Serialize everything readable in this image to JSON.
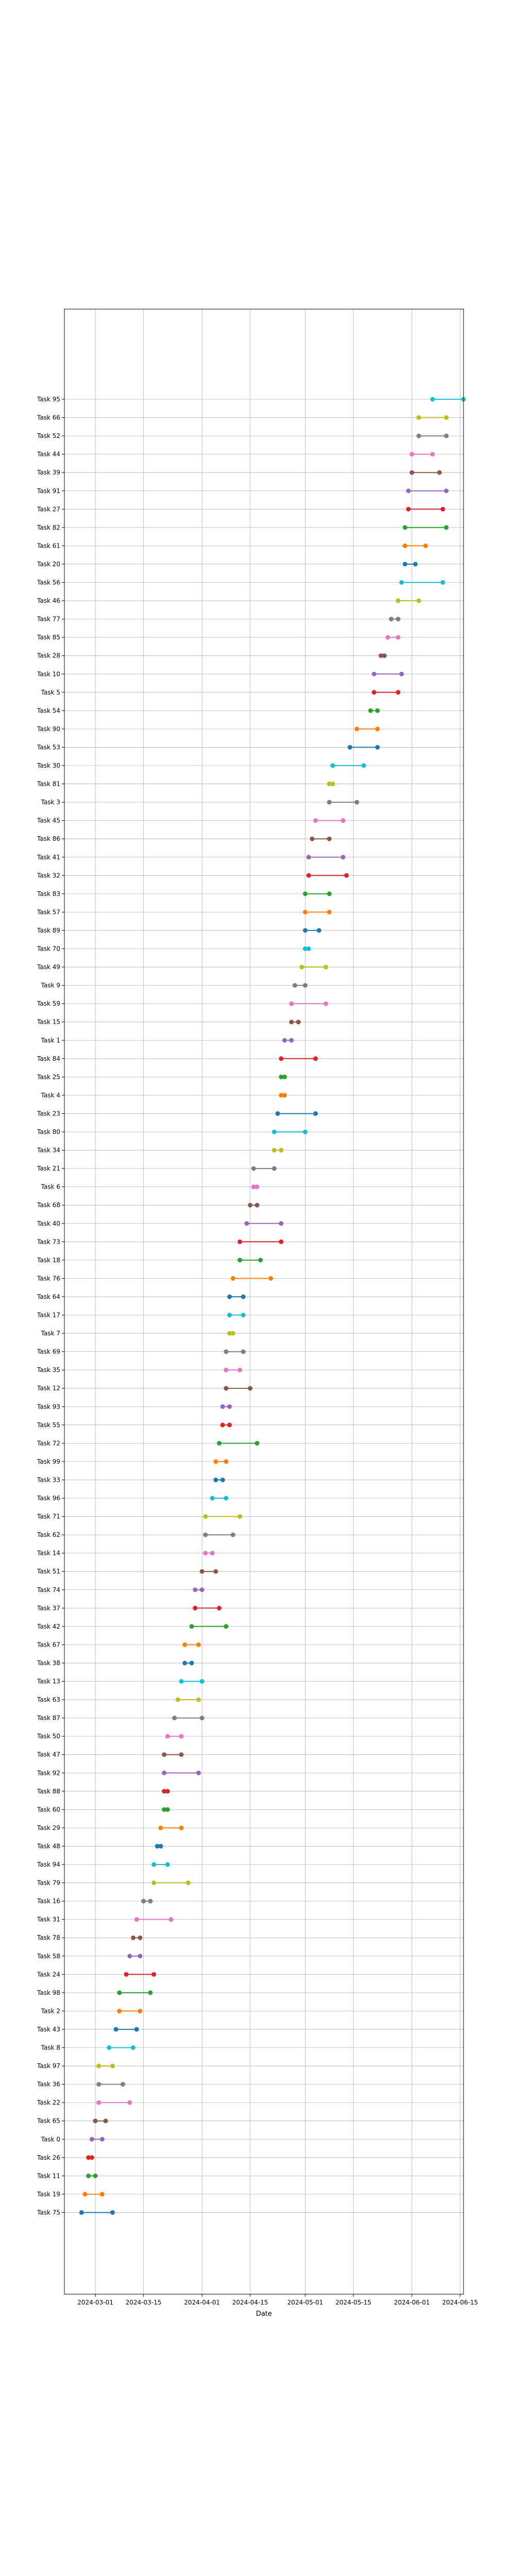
{
  "chart_data": {
    "type": "dumbbell",
    "title": "",
    "xlabel": "Date",
    "ylabel": "",
    "grid": true,
    "xlim": [
      "2024-02-21",
      "2024-06-16"
    ],
    "x_ticks": [
      "2024-03-01",
      "2024-03-15",
      "2024-04-01",
      "2024-04-15",
      "2024-05-01",
      "2024-05-15",
      "2024-06-01",
      "2024-06-15"
    ],
    "tasks": [
      {
        "name": "Task 75",
        "start": "2024-02-26",
        "end": "2024-03-06",
        "color": "#1f77b4"
      },
      {
        "name": "Task 19",
        "start": "2024-02-27",
        "end": "2024-03-03",
        "color": "#ff7f0e"
      },
      {
        "name": "Task 11",
        "start": "2024-02-28",
        "end": "2024-03-01",
        "color": "#2ca02c"
      },
      {
        "name": "Task 26",
        "start": "2024-02-28",
        "end": "2024-02-29",
        "color": "#d62728"
      },
      {
        "name": "Task 0",
        "start": "2024-02-29",
        "end": "2024-03-03",
        "color": "#9467bd"
      },
      {
        "name": "Task 65",
        "start": "2024-03-01",
        "end": "2024-03-04",
        "color": "#8c564b"
      },
      {
        "name": "Task 22",
        "start": "2024-03-02",
        "end": "2024-03-11",
        "color": "#e377c2"
      },
      {
        "name": "Task 36",
        "start": "2024-03-02",
        "end": "2024-03-09",
        "color": "#7f7f7f"
      },
      {
        "name": "Task 97",
        "start": "2024-03-02",
        "end": "2024-03-06",
        "color": "#bcbd22"
      },
      {
        "name": "Task 8",
        "start": "2024-03-05",
        "end": "2024-03-12",
        "color": "#17becf"
      },
      {
        "name": "Task 43",
        "start": "2024-03-07",
        "end": "2024-03-13",
        "color": "#1f77b4"
      },
      {
        "name": "Task 2",
        "start": "2024-03-08",
        "end": "2024-03-14",
        "color": "#ff7f0e"
      },
      {
        "name": "Task 98",
        "start": "2024-03-08",
        "end": "2024-03-17",
        "color": "#2ca02c"
      },
      {
        "name": "Task 24",
        "start": "2024-03-10",
        "end": "2024-03-18",
        "color": "#d62728"
      },
      {
        "name": "Task 58",
        "start": "2024-03-11",
        "end": "2024-03-14",
        "color": "#9467bd"
      },
      {
        "name": "Task 78",
        "start": "2024-03-12",
        "end": "2024-03-14",
        "color": "#8c564b"
      },
      {
        "name": "Task 31",
        "start": "2024-03-13",
        "end": "2024-03-23",
        "color": "#e377c2"
      },
      {
        "name": "Task 16",
        "start": "2024-03-15",
        "end": "2024-03-17",
        "color": "#7f7f7f"
      },
      {
        "name": "Task 79",
        "start": "2024-03-18",
        "end": "2024-03-28",
        "color": "#bcbd22"
      },
      {
        "name": "Task 94",
        "start": "2024-03-18",
        "end": "2024-03-22",
        "color": "#17becf"
      },
      {
        "name": "Task 48",
        "start": "2024-03-19",
        "end": "2024-03-20",
        "color": "#1f77b4"
      },
      {
        "name": "Task 29",
        "start": "2024-03-20",
        "end": "2024-03-26",
        "color": "#ff7f0e"
      },
      {
        "name": "Task 60",
        "start": "2024-03-21",
        "end": "2024-03-22",
        "color": "#2ca02c"
      },
      {
        "name": "Task 88",
        "start": "2024-03-21",
        "end": "2024-03-22",
        "color": "#d62728"
      },
      {
        "name": "Task 92",
        "start": "2024-03-21",
        "end": "2024-03-31",
        "color": "#9467bd"
      },
      {
        "name": "Task 47",
        "start": "2024-03-21",
        "end": "2024-03-26",
        "color": "#8c564b"
      },
      {
        "name": "Task 50",
        "start": "2024-03-22",
        "end": "2024-03-26",
        "color": "#e377c2"
      },
      {
        "name": "Task 87",
        "start": "2024-03-24",
        "end": "2024-04-01",
        "color": "#7f7f7f"
      },
      {
        "name": "Task 63",
        "start": "2024-03-25",
        "end": "2024-03-31",
        "color": "#bcbd22"
      },
      {
        "name": "Task 13",
        "start": "2024-03-26",
        "end": "2024-04-01",
        "color": "#17becf"
      },
      {
        "name": "Task 38",
        "start": "2024-03-27",
        "end": "2024-03-29",
        "color": "#1f77b4"
      },
      {
        "name": "Task 67",
        "start": "2024-03-27",
        "end": "2024-03-31",
        "color": "#ff7f0e"
      },
      {
        "name": "Task 42",
        "start": "2024-03-29",
        "end": "2024-04-08",
        "color": "#2ca02c"
      },
      {
        "name": "Task 37",
        "start": "2024-03-30",
        "end": "2024-04-06",
        "color": "#d62728"
      },
      {
        "name": "Task 74",
        "start": "2024-03-30",
        "end": "2024-04-01",
        "color": "#9467bd"
      },
      {
        "name": "Task 51",
        "start": "2024-04-01",
        "end": "2024-04-05",
        "color": "#8c564b"
      },
      {
        "name": "Task 14",
        "start": "2024-04-02",
        "end": "2024-04-04",
        "color": "#e377c2"
      },
      {
        "name": "Task 62",
        "start": "2024-04-02",
        "end": "2024-04-10",
        "color": "#7f7f7f"
      },
      {
        "name": "Task 71",
        "start": "2024-04-02",
        "end": "2024-04-12",
        "color": "#bcbd22"
      },
      {
        "name": "Task 96",
        "start": "2024-04-04",
        "end": "2024-04-08",
        "color": "#17becf"
      },
      {
        "name": "Task 33",
        "start": "2024-04-05",
        "end": "2024-04-07",
        "color": "#1f77b4"
      },
      {
        "name": "Task 99",
        "start": "2024-04-05",
        "end": "2024-04-08",
        "color": "#ff7f0e"
      },
      {
        "name": "Task 72",
        "start": "2024-04-06",
        "end": "2024-04-17",
        "color": "#2ca02c"
      },
      {
        "name": "Task 55",
        "start": "2024-04-07",
        "end": "2024-04-09",
        "color": "#d62728"
      },
      {
        "name": "Task 93",
        "start": "2024-04-07",
        "end": "2024-04-09",
        "color": "#9467bd"
      },
      {
        "name": "Task 12",
        "start": "2024-04-08",
        "end": "2024-04-15",
        "color": "#8c564b"
      },
      {
        "name": "Task 35",
        "start": "2024-04-08",
        "end": "2024-04-12",
        "color": "#e377c2"
      },
      {
        "name": "Task 69",
        "start": "2024-04-08",
        "end": "2024-04-13",
        "color": "#7f7f7f"
      },
      {
        "name": "Task 7",
        "start": "2024-04-09",
        "end": "2024-04-10",
        "color": "#bcbd22"
      },
      {
        "name": "Task 17",
        "start": "2024-04-09",
        "end": "2024-04-13",
        "color": "#17becf"
      },
      {
        "name": "Task 64",
        "start": "2024-04-09",
        "end": "2024-04-13",
        "color": "#1f77b4"
      },
      {
        "name": "Task 76",
        "start": "2024-04-10",
        "end": "2024-04-21",
        "color": "#ff7f0e"
      },
      {
        "name": "Task 18",
        "start": "2024-04-12",
        "end": "2024-04-18",
        "color": "#2ca02c"
      },
      {
        "name": "Task 73",
        "start": "2024-04-12",
        "end": "2024-04-24",
        "color": "#d62728"
      },
      {
        "name": "Task 40",
        "start": "2024-04-14",
        "end": "2024-04-24",
        "color": "#9467bd"
      },
      {
        "name": "Task 68",
        "start": "2024-04-15",
        "end": "2024-04-17",
        "color": "#8c564b"
      },
      {
        "name": "Task 6",
        "start": "2024-04-16",
        "end": "2024-04-17",
        "color": "#e377c2"
      },
      {
        "name": "Task 21",
        "start": "2024-04-16",
        "end": "2024-04-22",
        "color": "#7f7f7f"
      },
      {
        "name": "Task 34",
        "start": "2024-04-22",
        "end": "2024-04-24",
        "color": "#bcbd22"
      },
      {
        "name": "Task 80",
        "start": "2024-04-22",
        "end": "2024-05-01",
        "color": "#17becf"
      },
      {
        "name": "Task 23",
        "start": "2024-04-23",
        "end": "2024-05-04",
        "color": "#1f77b4"
      },
      {
        "name": "Task 4",
        "start": "2024-04-24",
        "end": "2024-04-25",
        "color": "#ff7f0e"
      },
      {
        "name": "Task 25",
        "start": "2024-04-24",
        "end": "2024-04-25",
        "color": "#2ca02c"
      },
      {
        "name": "Task 84",
        "start": "2024-04-24",
        "end": "2024-05-04",
        "color": "#d62728"
      },
      {
        "name": "Task 1",
        "start": "2024-04-25",
        "end": "2024-04-27",
        "color": "#9467bd"
      },
      {
        "name": "Task 15",
        "start": "2024-04-27",
        "end": "2024-04-29",
        "color": "#8c564b"
      },
      {
        "name": "Task 59",
        "start": "2024-04-27",
        "end": "2024-05-07",
        "color": "#e377c2"
      },
      {
        "name": "Task 9",
        "start": "2024-04-28",
        "end": "2024-05-01",
        "color": "#7f7f7f"
      },
      {
        "name": "Task 49",
        "start": "2024-04-30",
        "end": "2024-05-07",
        "color": "#bcbd22"
      },
      {
        "name": "Task 70",
        "start": "2024-05-01",
        "end": "2024-05-02",
        "color": "#17becf"
      },
      {
        "name": "Task 89",
        "start": "2024-05-01",
        "end": "2024-05-05",
        "color": "#1f77b4"
      },
      {
        "name": "Task 57",
        "start": "2024-05-01",
        "end": "2024-05-08",
        "color": "#ff7f0e"
      },
      {
        "name": "Task 83",
        "start": "2024-05-01",
        "end": "2024-05-08",
        "color": "#2ca02c"
      },
      {
        "name": "Task 32",
        "start": "2024-05-02",
        "end": "2024-05-13",
        "color": "#d62728"
      },
      {
        "name": "Task 41",
        "start": "2024-05-02",
        "end": "2024-05-12",
        "color": "#9467bd"
      },
      {
        "name": "Task 86",
        "start": "2024-05-03",
        "end": "2024-05-08",
        "color": "#8c564b"
      },
      {
        "name": "Task 45",
        "start": "2024-05-04",
        "end": "2024-05-12",
        "color": "#e377c2"
      },
      {
        "name": "Task 3",
        "start": "2024-05-08",
        "end": "2024-05-16",
        "color": "#7f7f7f"
      },
      {
        "name": "Task 81",
        "start": "2024-05-08",
        "end": "2024-05-09",
        "color": "#bcbd22"
      },
      {
        "name": "Task 30",
        "start": "2024-05-09",
        "end": "2024-05-18",
        "color": "#17becf"
      },
      {
        "name": "Task 53",
        "start": "2024-05-14",
        "end": "2024-05-22",
        "color": "#1f77b4"
      },
      {
        "name": "Task 90",
        "start": "2024-05-16",
        "end": "2024-05-22",
        "color": "#ff7f0e"
      },
      {
        "name": "Task 54",
        "start": "2024-05-20",
        "end": "2024-05-22",
        "color": "#2ca02c"
      },
      {
        "name": "Task 5",
        "start": "2024-05-21",
        "end": "2024-05-28",
        "color": "#d62728"
      },
      {
        "name": "Task 10",
        "start": "2024-05-21",
        "end": "2024-05-29",
        "color": "#9467bd"
      },
      {
        "name": "Task 28",
        "start": "2024-05-23",
        "end": "2024-05-24",
        "color": "#8c564b"
      },
      {
        "name": "Task 85",
        "start": "2024-05-25",
        "end": "2024-05-28",
        "color": "#e377c2"
      },
      {
        "name": "Task 77",
        "start": "2024-05-26",
        "end": "2024-05-28",
        "color": "#7f7f7f"
      },
      {
        "name": "Task 46",
        "start": "2024-05-28",
        "end": "2024-06-03",
        "color": "#bcbd22"
      },
      {
        "name": "Task 56",
        "start": "2024-05-29",
        "end": "2024-06-10",
        "color": "#17becf"
      },
      {
        "name": "Task 20",
        "start": "2024-05-30",
        "end": "2024-06-02",
        "color": "#1f77b4"
      },
      {
        "name": "Task 61",
        "start": "2024-05-30",
        "end": "2024-06-05",
        "color": "#ff7f0e"
      },
      {
        "name": "Task 82",
        "start": "2024-05-30",
        "end": "2024-06-11",
        "color": "#2ca02c"
      },
      {
        "name": "Task 27",
        "start": "2024-05-31",
        "end": "2024-06-10",
        "color": "#d62728"
      },
      {
        "name": "Task 91",
        "start": "2024-05-31",
        "end": "2024-06-11",
        "color": "#9467bd"
      },
      {
        "name": "Task 39",
        "start": "2024-06-01",
        "end": "2024-06-09",
        "color": "#8c564b"
      },
      {
        "name": "Task 44",
        "start": "2024-06-01",
        "end": "2024-06-07",
        "color": "#e377c2"
      },
      {
        "name": "Task 52",
        "start": "2024-06-03",
        "end": "2024-06-11",
        "color": "#7f7f7f"
      },
      {
        "name": "Task 66",
        "start": "2024-06-03",
        "end": "2024-06-11",
        "color": "#bcbd22"
      },
      {
        "name": "Task 95",
        "start": "2024-06-07",
        "end": "2024-06-16",
        "color": "#17becf"
      }
    ]
  }
}
